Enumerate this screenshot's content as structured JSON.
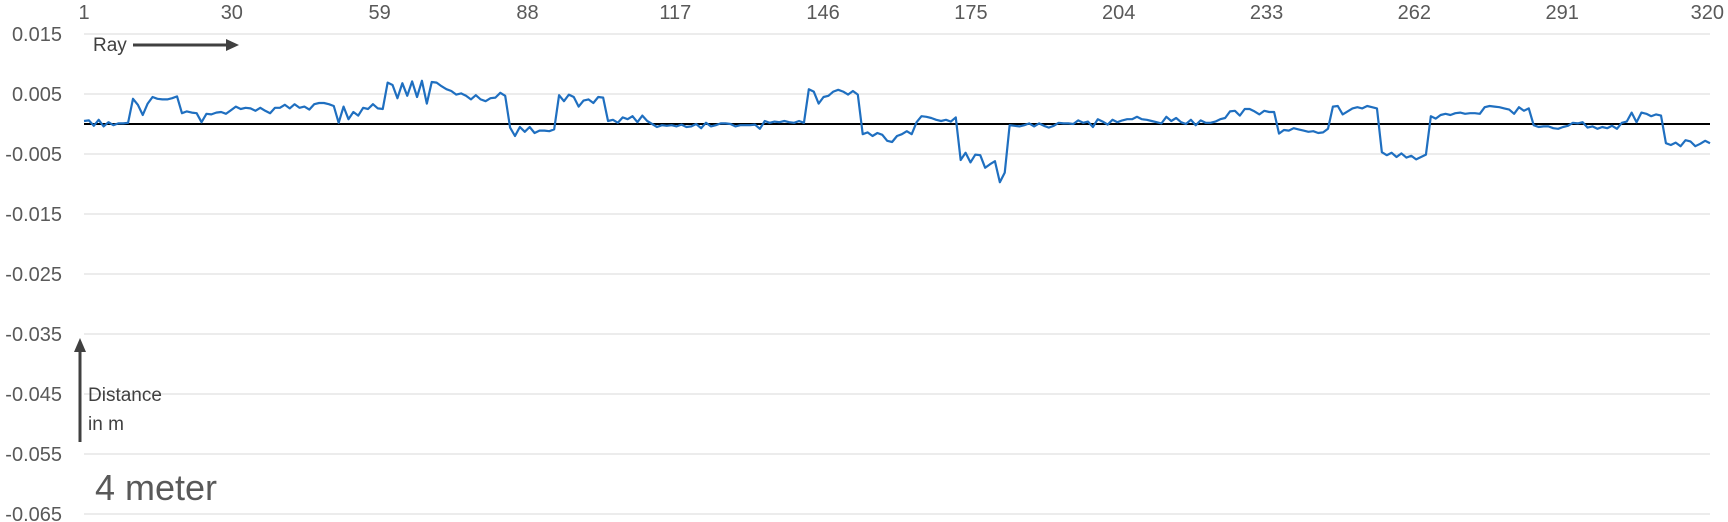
{
  "chart_data": {
    "type": "line",
    "title": "",
    "xlabel": "Ray",
    "ylabel": "Distance in m",
    "annotation": "4 meter",
    "x_ticks": [
      "1",
      "30",
      "59",
      "88",
      "117",
      "146",
      "175",
      "204",
      "233",
      "262",
      "291",
      "320"
    ],
    "y_ticks": [
      "0.015",
      "0.005",
      "-0.005",
      "-0.015",
      "-0.025",
      "-0.035",
      "-0.045",
      "-0.055",
      "-0.065"
    ],
    "xlim": [
      1,
      320
    ],
    "ylim": [
      -0.065,
      0.015
    ],
    "grid": true,
    "zero_line": true,
    "x_axis_position": "top",
    "series": [
      {
        "color": "#1f6fc0",
        "values": [
          0.0005,
          0.0006,
          -0.0003,
          0.0007,
          -0.0004,
          0.0003,
          -0.0002,
          0.0001,
          0.0001,
          0.0002,
          0.0042,
          0.0032,
          0.0015,
          0.0034,
          0.0045,
          0.0042,
          0.0041,
          0.0041,
          0.0043,
          0.0046,
          0.0018,
          0.0021,
          0.0019,
          0.0018,
          0.0003,
          0.0017,
          0.0016,
          0.0019,
          0.002,
          0.0017,
          0.0023,
          0.0029,
          0.0025,
          0.0027,
          0.0026,
          0.0022,
          0.0027,
          0.0022,
          0.0018,
          0.0027,
          0.0027,
          0.0032,
          0.0026,
          0.0033,
          0.0027,
          0.0029,
          0.0024,
          0.0033,
          0.0035,
          0.0035,
          0.0033,
          0.003,
          0.0002,
          0.0029,
          0.0008,
          0.002,
          0.0014,
          0.0027,
          0.0025,
          0.0033,
          0.0026,
          0.0025,
          0.0069,
          0.0065,
          0.0043,
          0.0068,
          0.0047,
          0.0071,
          0.0045,
          0.0072,
          0.0034,
          0.007,
          0.0069,
          0.0063,
          0.0058,
          0.0055,
          0.0049,
          0.0051,
          0.0047,
          0.0041,
          0.0048,
          0.0041,
          0.0038,
          0.0043,
          0.0044,
          0.0052,
          0.0047,
          -0.0006,
          -0.002,
          -0.0005,
          -0.0013,
          -0.0005,
          -0.0015,
          -0.0011,
          -0.0011,
          -0.0012,
          -0.0009,
          0.0048,
          0.0038,
          0.0049,
          0.0045,
          0.0029,
          0.0039,
          0.0041,
          0.0035,
          0.0045,
          0.0044,
          0.0005,
          0.0007,
          0.0002,
          0.0011,
          0.0008,
          0.0013,
          0.0003,
          0.0014,
          0.0005,
          0.0,
          -0.0005,
          -0.0002,
          -0.0003,
          -0.0002,
          -0.0004,
          -0.0001,
          -0.0005,
          -0.0004,
          0.0,
          -0.0007,
          0.0002,
          -0.0004,
          -0.0002,
          0.0001,
          0.0001,
          0.0,
          -0.0004,
          -0.0002,
          -0.0002,
          -0.0002,
          -0.0001,
          -0.0008,
          0.0005,
          0.0002,
          0.0004,
          0.0003,
          0.0005,
          0.0003,
          0.0002,
          0.0005,
          0.0002,
          0.0058,
          0.0054,
          0.0034,
          0.0045,
          0.0047,
          0.0054,
          0.0057,
          0.0054,
          0.0049,
          0.0055,
          0.0049,
          -0.0017,
          -0.0014,
          -0.002,
          -0.0015,
          -0.0018,
          -0.0028,
          -0.003,
          -0.002,
          -0.0017,
          -0.0012,
          -0.0017,
          0.0003,
          0.0013,
          0.0012,
          0.001,
          0.0007,
          0.0005,
          0.0007,
          0.0004,
          0.0011,
          -0.006,
          -0.0048,
          -0.0064,
          -0.0051,
          -0.0052,
          -0.0073,
          -0.0067,
          -0.0062,
          -0.0097,
          -0.0081,
          -0.0002,
          -0.0003,
          -0.0004,
          -0.0002,
          0.0001,
          -0.0004,
          0.0001,
          -0.0003,
          -0.0006,
          -0.0003,
          0.0002,
          0.0001,
          0.0001,
          0.0,
          0.0006,
          0.0002,
          0.0004,
          -0.0005,
          0.0008,
          0.0004,
          -0.0001,
          0.0007,
          0.0003,
          0.0006,
          0.0008,
          0.0008,
          0.0012,
          0.0008,
          0.0007,
          0.0005,
          0.0003,
          0.0001,
          0.0012,
          0.0005,
          0.001,
          0.0003,
          0.0,
          0.0007,
          -0.0002,
          0.0006,
          0.0002,
          0.0002,
          0.0004,
          0.0008,
          0.001,
          0.0021,
          0.0022,
          0.0014,
          0.0025,
          0.0025,
          0.0021,
          0.0016,
          0.0022,
          0.002,
          0.002,
          -0.0016,
          -0.001,
          -0.0011,
          -0.0007,
          -0.0009,
          -0.0011,
          -0.0013,
          -0.0012,
          -0.0015,
          -0.0014,
          -0.0008,
          0.0029,
          0.003,
          0.0016,
          0.0021,
          0.0026,
          0.0028,
          0.0026,
          0.003,
          0.0028,
          0.0026,
          -0.0047,
          -0.0052,
          -0.0048,
          -0.0055,
          -0.0049,
          -0.0056,
          -0.0053,
          -0.0059,
          -0.0055,
          -0.0051,
          0.0013,
          0.0009,
          0.0015,
          0.0017,
          0.0015,
          0.0018,
          0.0019,
          0.0017,
          0.0018,
          0.0018,
          0.0017,
          0.0028,
          0.003,
          0.0029,
          0.0028,
          0.0026,
          0.0024,
          0.0017,
          0.0028,
          0.0022,
          0.0026,
          -0.0002,
          -0.0005,
          -0.0004,
          -0.0004,
          -0.0007,
          -0.0008,
          -0.0005,
          -0.0003,
          0.0002,
          0.0001,
          0.0003,
          -0.0006,
          -0.0004,
          -0.0008,
          -0.0005,
          -0.0007,
          -0.0003,
          -0.0008,
          0.0002,
          0.0004,
          0.0019,
          0.0003,
          0.0019,
          0.0017,
          0.0013,
          0.0016,
          0.0014,
          -0.0032,
          -0.0035,
          -0.0031,
          -0.0037,
          -0.0027,
          -0.0029,
          -0.0037,
          -0.0033,
          -0.0028,
          -0.0032
        ]
      }
    ]
  }
}
